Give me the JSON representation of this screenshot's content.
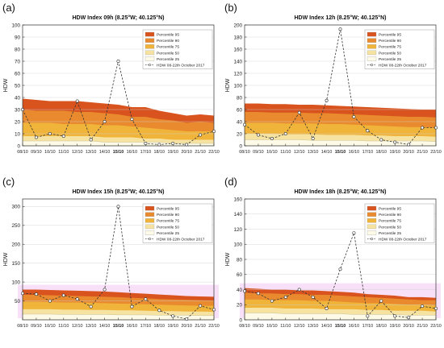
{
  "colors": {
    "p95": "#d9531e",
    "p90": "#e98a2e",
    "p75": "#f0b43a",
    "p50": "#f7e3a1",
    "p25": "#fdfbe8",
    "obs": "#333333",
    "highlight": "#f3c6f2"
  },
  "chart_data": [
    {
      "type": "area",
      "panel_label": "(a)",
      "title": "HDW Index 09h (8.25°W; 40.125°N)",
      "ylabel": "HDW",
      "ylim": [
        0,
        100
      ],
      "yticks": [
        0,
        10,
        20,
        30,
        40,
        50,
        60,
        70,
        80,
        90,
        100
      ],
      "categories": [
        "08/10",
        "09/10",
        "10/10",
        "11/10",
        "12/10",
        "13/10",
        "14/10",
        "15/10",
        "16/10",
        "17/10",
        "18/10",
        "19/10",
        "20/10",
        "21/10",
        "22/10"
      ],
      "bold_category": "15/10",
      "legend": [
        "Percentile 95",
        "Percentile 90",
        "Percentile 75",
        "Percentile 50",
        "Percentile 25",
        "HDW 08-22th October 2017"
      ],
      "legend_position": "top-right",
      "series": [
        {
          "name": "Percentile 95",
          "values": [
            39,
            38,
            37,
            37,
            37,
            36,
            35,
            34,
            32,
            32,
            29,
            27,
            25,
            26,
            25
          ]
        },
        {
          "name": "Percentile 90",
          "values": [
            30,
            29,
            29,
            29,
            28,
            28,
            27,
            26,
            24,
            24,
            22,
            21,
            19,
            20,
            19
          ]
        },
        {
          "name": "Percentile 75",
          "values": [
            19,
            19,
            19,
            18,
            18,
            18,
            17,
            17,
            16,
            15,
            14,
            13,
            12,
            12,
            12
          ]
        },
        {
          "name": "Percentile 50",
          "values": [
            8,
            8,
            8,
            8,
            8,
            8,
            7,
            7,
            7,
            6,
            6,
            5,
            5,
            5,
            5
          ]
        },
        {
          "name": "Percentile 25",
          "values": [
            4,
            4,
            4,
            4,
            4,
            4,
            3,
            3,
            3,
            3,
            3,
            2,
            2,
            2,
            2
          ]
        },
        {
          "name": "HDW 08-22th October 2017",
          "values": [
            30,
            7,
            10,
            8,
            37,
            5,
            20,
            70,
            22,
            2,
            1,
            2,
            1,
            9,
            12
          ]
        }
      ]
    },
    {
      "type": "area",
      "panel_label": "(b)",
      "title": "HDW Index 12h (8.25°W; 40.125°N)",
      "ylabel": "HDW",
      "ylim": [
        0,
        200
      ],
      "yticks": [
        0,
        20,
        40,
        60,
        80,
        100,
        120,
        140,
        160,
        180,
        200
      ],
      "categories": [
        "08/10",
        "09/10",
        "10/10",
        "11/10",
        "12/10",
        "13/10",
        "14/10",
        "15/10",
        "16/10",
        "17/10",
        "18/10",
        "19/10",
        "20/10",
        "21/10",
        "22/10"
      ],
      "bold_category": "15/10",
      "legend": [
        "Percentile 95",
        "Percentile 90",
        "Percentile 75",
        "Percentile 50",
        "Percentile 25",
        "HDW 08-22th October 2017"
      ],
      "legend_position": "top-right",
      "series": [
        {
          "name": "Percentile 95",
          "values": [
            70,
            70,
            69,
            69,
            68,
            68,
            67,
            66,
            65,
            64,
            63,
            62,
            61,
            60,
            60
          ]
        },
        {
          "name": "Percentile 90",
          "values": [
            56,
            56,
            55,
            55,
            55,
            54,
            54,
            53,
            52,
            51,
            50,
            49,
            48,
            48,
            47
          ]
        },
        {
          "name": "Percentile 75",
          "values": [
            38,
            38,
            38,
            37,
            37,
            37,
            36,
            36,
            35,
            34,
            33,
            32,
            31,
            31,
            30
          ]
        },
        {
          "name": "Percentile 50",
          "values": [
            20,
            20,
            20,
            19,
            19,
            19,
            18,
            18,
            18,
            17,
            17,
            16,
            16,
            16,
            15
          ]
        },
        {
          "name": "Percentile 25",
          "values": [
            10,
            10,
            10,
            10,
            10,
            9,
            9,
            9,
            9,
            8,
            8,
            8,
            8,
            8,
            7
          ]
        },
        {
          "name": "HDW 08-22th October 2017",
          "values": [
            35,
            18,
            12,
            20,
            55,
            12,
            75,
            193,
            48,
            25,
            10,
            6,
            2,
            30,
            30
          ]
        }
      ]
    },
    {
      "type": "area",
      "panel_label": "(c)",
      "title": "HDW Index 15h (8.25°W; 40.125°N)",
      "ylabel": "HDW",
      "ylim": [
        0,
        320
      ],
      "yticks": [
        50,
        100,
        150,
        200,
        250,
        300
      ],
      "categories": [
        "08/10",
        "09/10",
        "10/10",
        "11/10",
        "12/10",
        "13/10",
        "14/10",
        "15/10",
        "16/10",
        "17/10",
        "18/10",
        "19/10",
        "20/10",
        "21/10",
        "22/10"
      ],
      "bold_category": "15/10",
      "legend": [
        "Percentile 95",
        "Percentile 90",
        "Percentile 75",
        "Percentile 50",
        "Percentile 25",
        "HDW 08-22th October 2017"
      ],
      "legend_position": "top-right",
      "series": [
        {
          "name": "Percentile 95",
          "values": [
            80,
            80,
            79,
            78,
            77,
            76,
            75,
            73,
            71,
            69,
            67,
            65,
            63,
            62,
            61
          ]
        },
        {
          "name": "Percentile 90",
          "values": [
            66,
            66,
            65,
            64,
            63,
            62,
            61,
            60,
            58,
            57,
            55,
            54,
            53,
            52,
            51
          ]
        },
        {
          "name": "Percentile 75",
          "values": [
            48,
            48,
            47,
            46,
            46,
            45,
            44,
            43,
            42,
            41,
            40,
            39,
            38,
            37,
            37
          ]
        },
        {
          "name": "Percentile 50",
          "values": [
            28,
            28,
            28,
            27,
            27,
            26,
            26,
            25,
            25,
            24,
            23,
            23,
            22,
            22,
            21
          ]
        },
        {
          "name": "Percentile 25",
          "values": [
            15,
            15,
            15,
            14,
            14,
            14,
            14,
            13,
            13,
            13,
            12,
            12,
            12,
            11,
            11
          ]
        },
        {
          "name": "HDW 08-22th October 2017",
          "values": [
            70,
            68,
            50,
            65,
            55,
            35,
            80,
            300,
            35,
            55,
            25,
            10,
            2,
            37,
            27
          ]
        }
      ]
    },
    {
      "type": "area",
      "panel_label": "(d)",
      "title": "HDW Index 18h (8.25°W; 40.125°N)",
      "ylabel": "HDW",
      "ylim": [
        0,
        160
      ],
      "yticks": [
        0,
        20,
        40,
        60,
        80,
        100,
        120,
        140,
        160
      ],
      "categories": [
        "08/10",
        "09/10",
        "10/10",
        "11/10",
        "12/10",
        "13/10",
        "14/10",
        "15/10",
        "16/10",
        "17/10",
        "18/10",
        "19/10",
        "20/10",
        "21/10",
        "22/10"
      ],
      "bold_category": "15/10",
      "legend": [
        "Percentile 95",
        "Percentile 90",
        "Percentile 75",
        "Percentile 50",
        "Percentile 25",
        "HDW 08-22th October 2017"
      ],
      "legend_position": "top-right",
      "series": [
        {
          "name": "Percentile 95",
          "values": [
            42,
            41,
            40,
            40,
            39,
            39,
            38,
            37,
            36,
            34,
            33,
            32,
            30,
            30,
            29
          ]
        },
        {
          "name": "Percentile 90",
          "values": [
            36,
            35,
            35,
            34,
            34,
            33,
            33,
            32,
            31,
            30,
            29,
            28,
            27,
            26,
            26
          ]
        },
        {
          "name": "Percentile 75",
          "values": [
            27,
            27,
            26,
            26,
            26,
            25,
            25,
            24,
            23,
            22,
            22,
            21,
            20,
            20,
            19
          ]
        },
        {
          "name": "Percentile 50",
          "values": [
            16,
            16,
            16,
            15,
            15,
            15,
            14,
            14,
            14,
            13,
            13,
            12,
            12,
            12,
            11
          ]
        },
        {
          "name": "Percentile 25",
          "values": [
            9,
            9,
            9,
            8,
            8,
            8,
            8,
            8,
            7,
            7,
            7,
            7,
            6,
            6,
            6
          ]
        },
        {
          "name": "HDW 08-22th October 2017",
          "values": [
            38,
            35,
            25,
            30,
            40,
            30,
            15,
            67,
            115,
            5,
            25,
            5,
            3,
            18,
            15
          ]
        }
      ]
    }
  ]
}
